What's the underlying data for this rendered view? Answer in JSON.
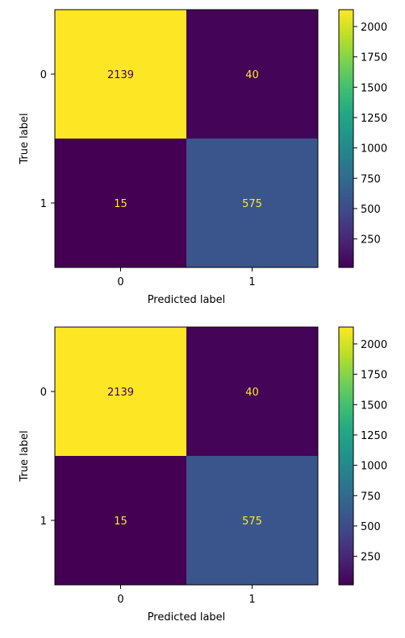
{
  "chart_data": [
    {
      "type": "heatmap",
      "title": "",
      "xlabel": "Predicted label",
      "ylabel": "True label",
      "x_tick_labels": [
        "0",
        "1"
      ],
      "y_tick_labels": [
        "0",
        "1"
      ],
      "matrix": [
        [
          2139,
          40
        ],
        [
          15,
          575
        ]
      ],
      "cell_labels": [
        [
          "2139",
          "40"
        ],
        [
          "15",
          "575"
        ]
      ],
      "colormap": "viridis",
      "colorbar": {
        "range": [
          15,
          2139
        ],
        "ticks": [
          250,
          500,
          750,
          1000,
          1250,
          1500,
          1750,
          2000
        ],
        "tick_labels": [
          "250",
          "500",
          "750",
          "1000",
          "1250",
          "1500",
          "1750",
          "2000"
        ]
      },
      "grid": false
    },
    {
      "type": "heatmap",
      "title": "",
      "xlabel": "Predicted label",
      "ylabel": "True label",
      "x_tick_labels": [
        "0",
        "1"
      ],
      "y_tick_labels": [
        "0",
        "1"
      ],
      "matrix": [
        [
          2139,
          40
        ],
        [
          15,
          575
        ]
      ],
      "cell_labels": [
        [
          "2139",
          "40"
        ],
        [
          "15",
          "575"
        ]
      ],
      "colormap": "viridis",
      "colorbar": {
        "range": [
          15,
          2139
        ],
        "ticks": [
          250,
          500,
          750,
          1000,
          1250,
          1500,
          1750,
          2000
        ],
        "tick_labels": [
          "250",
          "500",
          "750",
          "1000",
          "1250",
          "1500",
          "1750",
          "2000"
        ]
      },
      "grid": false
    }
  ],
  "colors": {
    "low_text": "#fde725",
    "high_text": "#440154",
    "axis": "#000000"
  }
}
